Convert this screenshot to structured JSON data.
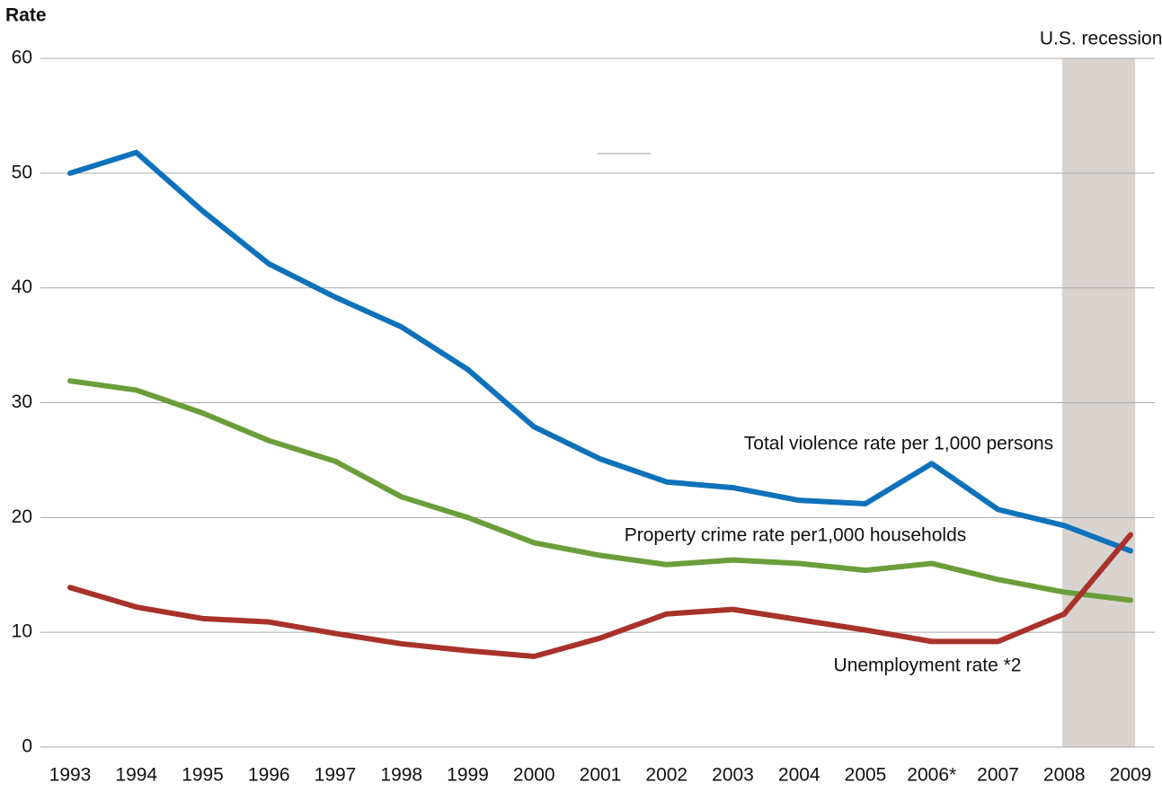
{
  "chart_data": {
    "type": "line",
    "y_label": "Rate",
    "categories": [
      "1993",
      "1994",
      "1995",
      "1996",
      "1997",
      "1998",
      "1999",
      "2000",
      "2001",
      "2002",
      "2003",
      "2004",
      "2005",
      "2006*",
      "2007",
      "2008",
      "2009"
    ],
    "series": [
      {
        "name": "Total violence rate per 1,000 persons",
        "color": "#0e72bb",
        "values": [
          50.0,
          51.8,
          46.7,
          42.1,
          39.2,
          36.6,
          32.9,
          27.9,
          25.1,
          23.1,
          22.6,
          21.5,
          21.2,
          24.7,
          20.7,
          19.3,
          17.1
        ]
      },
      {
        "name": "Property crime rate per1,000 households",
        "color": "#6b9e3a",
        "values": [
          31.9,
          31.1,
          29.1,
          26.7,
          24.9,
          21.8,
          20.0,
          17.8,
          16.7,
          15.9,
          16.3,
          16.0,
          15.4,
          16.0,
          14.6,
          13.5,
          12.8
        ]
      },
      {
        "name": "Unemployment rate *2",
        "color": "#a8322a",
        "values": [
          13.9,
          12.2,
          11.2,
          10.9,
          9.9,
          9.0,
          8.4,
          7.9,
          9.5,
          11.6,
          12.0,
          11.1,
          10.2,
          9.2,
          9.2,
          11.6,
          18.5
        ]
      }
    ],
    "recession": {
      "label": "U.S. recession",
      "start": "2008",
      "end": "2009",
      "color": "#d9d3d0"
    },
    "ylim": [
      0,
      60
    ],
    "yticks": [
      0,
      10,
      20,
      30,
      40,
      50,
      60
    ],
    "grid": true
  }
}
